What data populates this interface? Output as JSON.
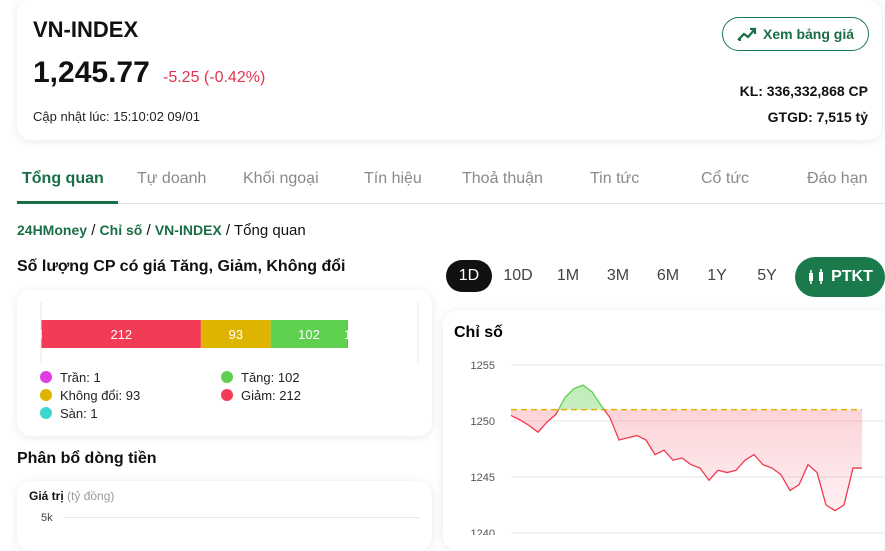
{
  "header": {
    "title": "VN-INDEX",
    "price": "1,245.77",
    "change": "-5.25 (-0.42%)",
    "updated": "Cập nhật lúc: 15:10:02 09/01",
    "button": "Xem bảng giá",
    "volume": "KL: 336,332,868 CP",
    "trade_value": "GTGD: 7,515 tỷ"
  },
  "tabs": [
    "Tổng quan",
    "Tự doanh",
    "Khối ngoại",
    "Tín hiệu",
    "Thoả thuận",
    "Tin tức",
    "Cổ tức",
    "Đáo hạn"
  ],
  "breadcrumb": {
    "items": [
      "24HMoney",
      "Chỉ số",
      "VN-INDEX",
      "Tổng quan"
    ],
    "separator": "/"
  },
  "ranges": [
    "1D",
    "10D",
    "1M",
    "3M",
    "6M",
    "1Y",
    "5Y"
  ],
  "analysis_button": "PTKT",
  "money_flow": {
    "title": "Phân bổ dòng tiền",
    "axis_label": "Giá trị",
    "unit": "(tỷ đồng)",
    "tick": "5k"
  },
  "chart_data": [
    {
      "type": "bar",
      "orientation": "horizontal",
      "stacked": true,
      "title": "Số lượng CP có giá Tăng, Giảm, Không đổi",
      "series": [
        {
          "name": "Sàn: 1",
          "color": "#3fd6cf",
          "values": [
            1
          ]
        },
        {
          "name": "Giảm: 212",
          "color": "#f23c55",
          "values": [
            212
          ]
        },
        {
          "name": "Không đổi: 93",
          "color": "#dfb400",
          "values": [
            93
          ]
        },
        {
          "name": "Tăng: 102",
          "color": "#5fcf4f",
          "values": [
            102
          ]
        },
        {
          "name": "Trần: 1",
          "color": "#e03ee0",
          "values": [
            1
          ]
        }
      ]
    },
    {
      "type": "area",
      "title": "Chỉ số",
      "ylim": [
        1240,
        1256
      ],
      "yticks": [
        1240,
        1245,
        1250,
        1255
      ],
      "grid": true,
      "reference": 1251.02,
      "reference_color": "#e0b400",
      "up_color": "#5fcf4f",
      "down_color": "#f0394f",
      "values": [
        1250.5,
        1250.1,
        1249.6,
        1249.0,
        1249.9,
        1250.6,
        1252.1,
        1252.9,
        1253.2,
        1252.6,
        1251.4,
        1250.3,
        1248.3,
        1248.5,
        1248.7,
        1248.3,
        1247.0,
        1247.4,
        1246.5,
        1246.7,
        1246.1,
        1245.8,
        1244.7,
        1245.6,
        1245.4,
        1245.6,
        1246.5,
        1247.0,
        1246.1,
        1245.8,
        1245.2,
        1243.8,
        1244.3,
        1246.1,
        1245.4,
        1242.5,
        1242.0,
        1242.5,
        1245.8,
        1245.8
      ]
    }
  ]
}
